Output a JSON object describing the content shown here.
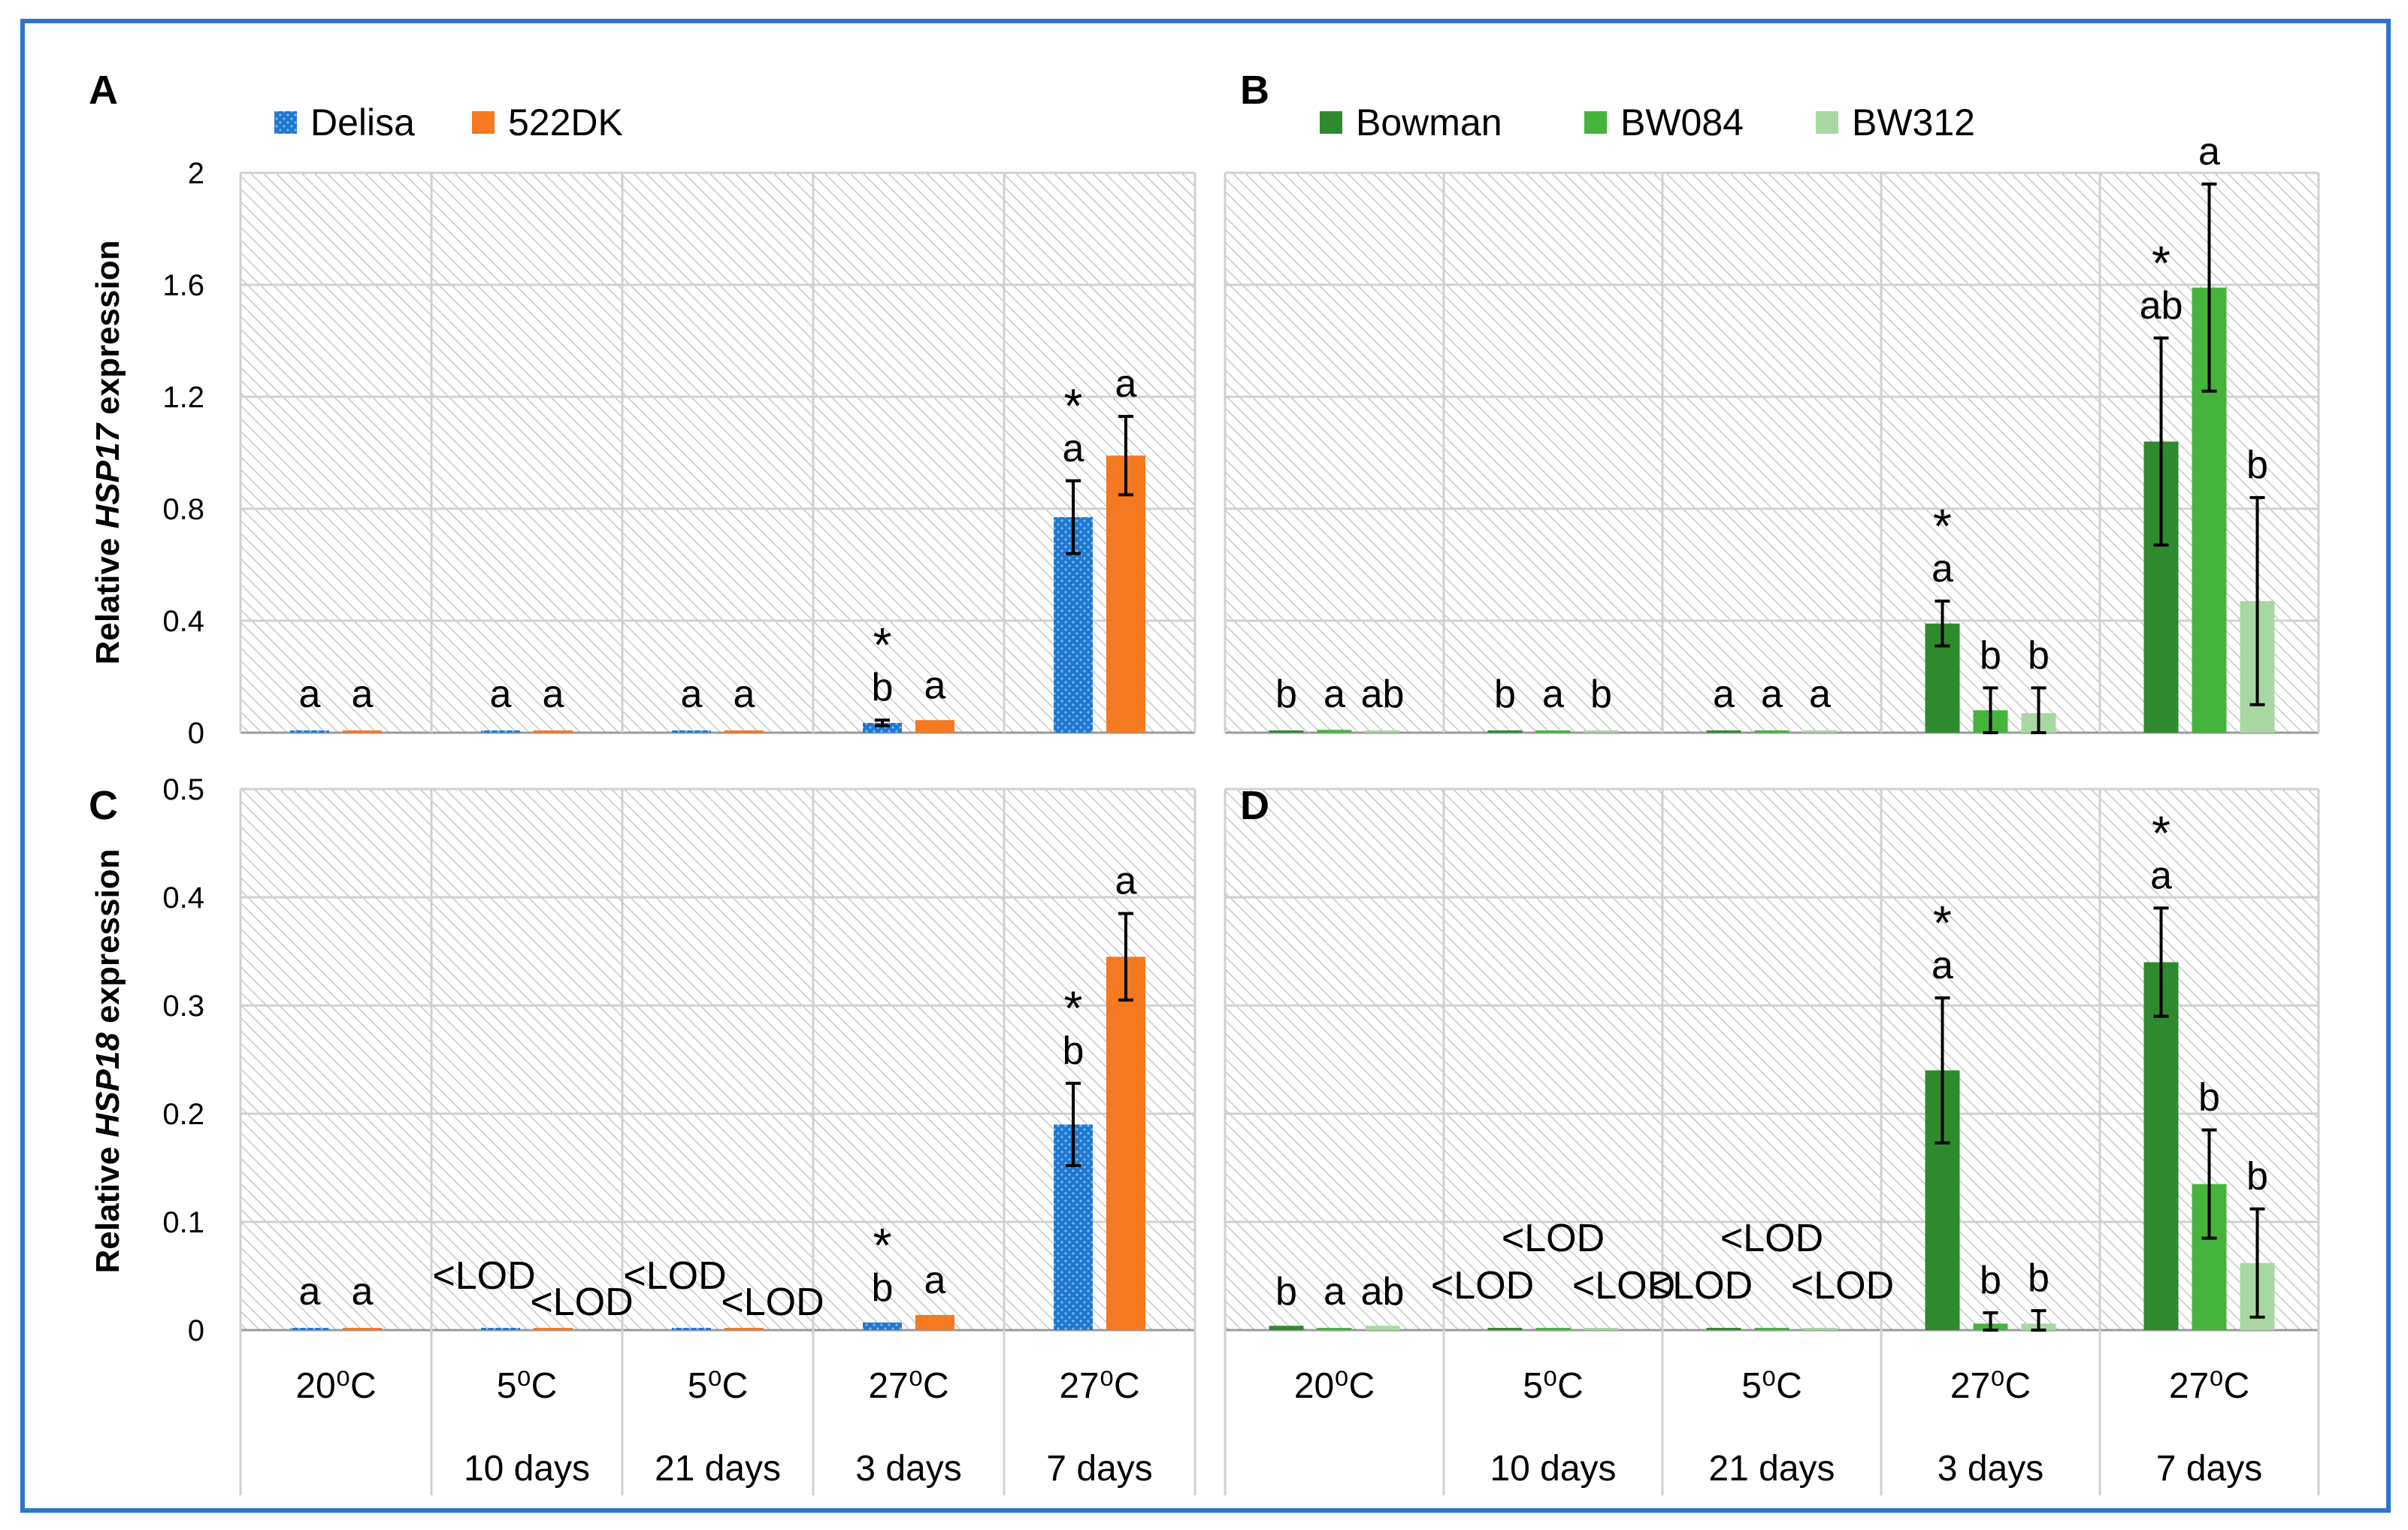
{
  "colors": {
    "frame": "#2e74c9",
    "Delisa": "#1f78d1",
    "522DK": "#f47920",
    "Bowman": "#2f8a2f",
    "BW084": "#46b43c",
    "BW312": "#a8d8a2"
  },
  "chart_data": [
    {
      "panel": "A",
      "type": "bar",
      "ylabel_prefix": "Relative ",
      "ylabel_gene": "HSP17",
      "ylabel_suffix": " expression",
      "ylim": [
        0,
        2
      ],
      "yticks": [
        "0",
        "0.4",
        "0.8",
        "1.2",
        "1.6",
        "2"
      ],
      "categories": [
        "20°C",
        "5°C 10 days",
        "5°C 21 days",
        "27°C 3 days",
        "27°C 7 days"
      ],
      "series": [
        {
          "name": "Delisa",
          "values": [
            0.005,
            0.004,
            0.004,
            0.035,
            0.77
          ],
          "errors": [
            0.002,
            0.002,
            0.002,
            0.01,
            0.13
          ],
          "labels": [
            "a",
            "a",
            "a",
            "b",
            "a"
          ],
          "stars": [
            false,
            false,
            false,
            true,
            true
          ]
        },
        {
          "name": "522DK",
          "values": [
            0.005,
            0.004,
            0.004,
            0.045,
            0.99
          ],
          "errors": [
            0.002,
            0.002,
            0.002,
            0.008,
            0.14
          ],
          "labels": [
            "a",
            "a",
            "a",
            "a",
            "a"
          ],
          "stars": [
            false,
            false,
            false,
            false,
            false
          ]
        }
      ]
    },
    {
      "panel": "B",
      "type": "bar",
      "ylim": [
        0,
        2
      ],
      "categories": [
        "20°C",
        "5°C 10 days",
        "5°C 21 days",
        "27°C 3 days",
        "27°C 7 days"
      ],
      "series": [
        {
          "name": "Bowman",
          "values": [
            0.005,
            0.003,
            0.003,
            0.39,
            1.04
          ],
          "errors": [
            0.002,
            0.001,
            0.001,
            0.08,
            0.37
          ],
          "labels": [
            "b",
            "b",
            "a",
            "a",
            "ab"
          ],
          "stars": [
            false,
            false,
            false,
            true,
            true
          ]
        },
        {
          "name": "BW084",
          "values": [
            0.01,
            0.004,
            0.003,
            0.08,
            1.59
          ],
          "errors": [
            0.004,
            0.001,
            0.001,
            0.08,
            0.37
          ],
          "labels": [
            "a",
            "a",
            "a",
            "b",
            "a"
          ],
          "stars": [
            false,
            false,
            false,
            false,
            false
          ]
        },
        {
          "name": "BW312",
          "values": [
            0.008,
            0.003,
            0.003,
            0.07,
            0.47
          ],
          "errors": [
            0.004,
            0.001,
            0.001,
            0.09,
            0.37
          ],
          "labels": [
            "ab",
            "b",
            "a",
            "b",
            "b"
          ],
          "stars": [
            false,
            false,
            false,
            false,
            false
          ]
        }
      ]
    },
    {
      "panel": "C",
      "type": "bar",
      "ylabel_prefix": "Relative ",
      "ylabel_gene": "HSP18",
      "ylabel_suffix": " expression",
      "ylim": [
        0,
        0.5
      ],
      "yticks": [
        "0",
        "0.1",
        "0.2",
        "0.3",
        "0.4",
        "0.5"
      ],
      "categories": [
        "20°C",
        "5°C 10 days",
        "5°C 21 days",
        "27°C 3 days",
        "27°C 7 days"
      ],
      "series": [
        {
          "name": "Delisa",
          "values": [
            0.002,
            0.001,
            0.001,
            0.007,
            0.19
          ],
          "errors": [
            0.001,
            0.0005,
            0.0005,
            0.002,
            0.038
          ],
          "labels": [
            "a",
            "<LOD",
            "<LOD",
            "b",
            "b"
          ],
          "stars": [
            false,
            false,
            false,
            true,
            true
          ]
        },
        {
          "name": "522DK",
          "values": [
            0.002,
            0.001,
            0.001,
            0.014,
            0.345
          ],
          "errors": [
            0.001,
            0.0005,
            0.0005,
            0.002,
            0.04
          ],
          "labels": [
            "a",
            "<LOD",
            "<LOD",
            "a",
            "a"
          ],
          "stars": [
            false,
            false,
            false,
            false,
            false
          ]
        }
      ]
    },
    {
      "panel": "D",
      "type": "bar",
      "ylim": [
        0,
        0.5
      ],
      "categories": [
        "20°C",
        "5°C 10 days",
        "5°C 21 days",
        "27°C 3 days",
        "27°C 7 days"
      ],
      "series": [
        {
          "name": "Bowman",
          "values": [
            0.004,
            0.001,
            0.001,
            0.24,
            0.34
          ],
          "errors": [
            0.001,
            0.0005,
            0.0005,
            0.067,
            0.05
          ],
          "labels": [
            "b",
            "<LOD",
            "<LOD",
            "a",
            "a"
          ],
          "stars": [
            false,
            false,
            false,
            true,
            true
          ]
        },
        {
          "name": "BW084",
          "values": [
            0.002,
            0.001,
            0.001,
            0.006,
            0.135
          ],
          "errors": [
            0.001,
            0.0005,
            0.0005,
            0.01,
            0.05
          ],
          "labels": [
            "a",
            "<LOD",
            "<LOD",
            "b",
            "b"
          ],
          "stars": [
            false,
            false,
            false,
            false,
            false
          ]
        },
        {
          "name": "BW312",
          "values": [
            0.004,
            0.001,
            0.001,
            0.006,
            0.062
          ],
          "errors": [
            0.001,
            0.0005,
            0.0005,
            0.012,
            0.05
          ],
          "labels": [
            "ab",
            "<LOD",
            "<LOD",
            "b",
            "b"
          ],
          "stars": [
            false,
            false,
            false,
            false,
            false
          ]
        }
      ]
    }
  ],
  "star_symbol": "*",
  "xaxis": {
    "temps": [
      "20⁰C",
      "5⁰C",
      "5⁰C",
      "27⁰C",
      "27⁰C"
    ],
    "durations": [
      "",
      "10 days",
      "21 days",
      "3 days",
      "7 days"
    ]
  },
  "legends": {
    "left": [
      "Delisa",
      "522DK"
    ],
    "right": [
      "Bowman",
      "BW084",
      "BW312"
    ]
  }
}
